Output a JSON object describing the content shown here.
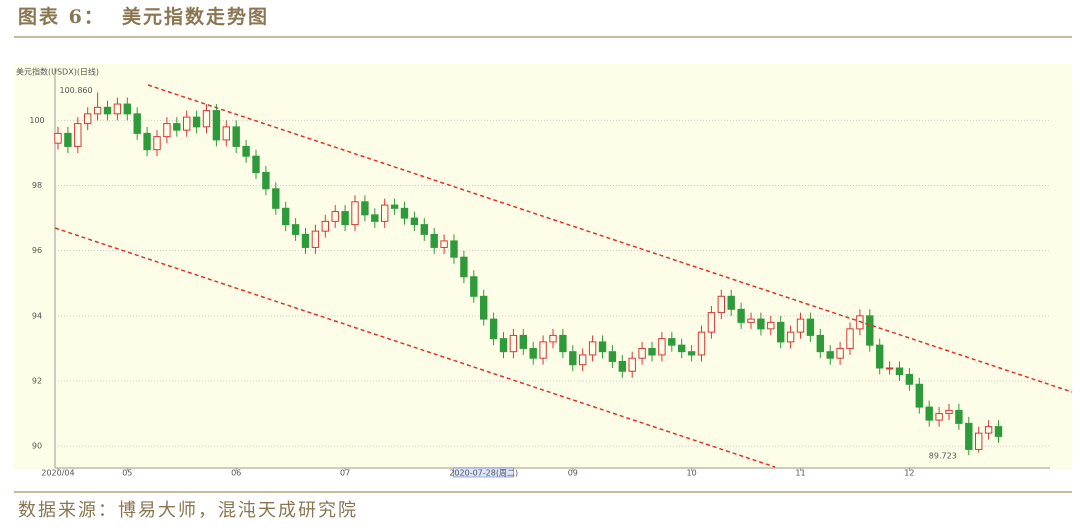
{
  "header": {
    "label": "图表 6：",
    "title": "美元指数走势图"
  },
  "footer": "数据来源：博易大师，混沌天成研究院",
  "chart_data": {
    "type": "candlestick",
    "title": "美元指数(USDX)(日线)",
    "up_color": "#d23a3a",
    "down_color": "#2e9b3a",
    "grid": true,
    "ylim": [
      89.33,
      101.3
    ],
    "yticks": [
      90,
      92,
      94,
      96,
      98,
      100
    ],
    "xticks": [
      {
        "value": 0,
        "label": "2020/04"
      },
      {
        "value": 7,
        "label": "05"
      },
      {
        "value": 18,
        "label": "06"
      },
      {
        "value": 29,
        "label": "07"
      },
      {
        "value": 52,
        "label": "09"
      },
      {
        "value": 64,
        "label": "10"
      },
      {
        "value": 75,
        "label": "11"
      },
      {
        "value": 86,
        "label": "12"
      }
    ],
    "cursor_label": {
      "value": 43,
      "label": "2020-07-28(周二)"
    },
    "annotations": [
      {
        "label": "100.860",
        "value": 100.86
      },
      {
        "label": "89.723",
        "value": 89.723
      }
    ],
    "categories": [
      null,
      null,
      null,
      null,
      null,
      null,
      null,
      null,
      null,
      null,
      null,
      null,
      null,
      null,
      null,
      null,
      null,
      null,
      null,
      null,
      null,
      null,
      null,
      null,
      null,
      null,
      null,
      null,
      null,
      null,
      null,
      null,
      null,
      null,
      null,
      null,
      null,
      null,
      null,
      null,
      null,
      null,
      null,
      null,
      null,
      null,
      null,
      null,
      null,
      null,
      null,
      null,
      null,
      null,
      null,
      null,
      null,
      null,
      null,
      null,
      null,
      null,
      null,
      null,
      null,
      null,
      null,
      null,
      null,
      null,
      null,
      null,
      null,
      null,
      null,
      null,
      null,
      null,
      null,
      null,
      null,
      null,
      null,
      null,
      null,
      null,
      null,
      null,
      null,
      null,
      null,
      null,
      null,
      null,
      null,
      null
    ],
    "open": [
      99.3,
      99.6,
      99.2,
      99.9,
      100.2,
      100.4,
      100.2,
      100.5,
      100.2,
      99.6,
      99.1,
      99.5,
      99.9,
      99.7,
      100.1,
      99.8,
      100.3,
      99.4,
      99.8,
      99.2,
      98.9,
      98.4,
      97.9,
      97.3,
      96.8,
      96.5,
      96.1,
      96.6,
      96.9,
      97.2,
      96.8,
      97.5,
      97.1,
      96.9,
      97.4,
      97.3,
      97.0,
      96.8,
      96.5,
      96.1,
      96.3,
      95.8,
      95.2,
      94.6,
      93.9,
      93.3,
      92.9,
      93.4,
      93.0,
      92.7,
      93.2,
      93.4,
      92.9,
      92.5,
      92.8,
      93.2,
      92.9,
      92.6,
      92.3,
      92.7,
      93.0,
      92.8,
      93.3,
      93.1,
      92.9,
      92.8,
      93.5,
      94.1,
      94.6,
      94.2,
      93.8,
      93.9,
      93.6,
      93.8,
      93.2,
      93.5,
      93.9,
      93.4,
      92.9,
      92.7,
      93.0,
      93.6,
      94.0,
      93.1,
      92.4,
      92.4,
      92.2,
      91.9,
      91.2,
      90.8,
      91.0,
      91.1,
      90.7,
      89.9,
      90.4,
      90.6
    ],
    "high": [
      99.8,
      99.8,
      100.1,
      100.4,
      100.86,
      100.6,
      100.7,
      100.7,
      100.4,
      99.8,
      99.7,
      100.1,
      100.1,
      100.3,
      100.3,
      100.5,
      100.5,
      100.0,
      100.0,
      99.4,
      99.1,
      98.6,
      98.1,
      97.5,
      97.0,
      96.7,
      96.8,
      97.1,
      97.4,
      97.4,
      97.7,
      97.7,
      97.3,
      97.6,
      97.6,
      97.5,
      97.2,
      97.0,
      96.7,
      96.5,
      96.5,
      96.0,
      95.4,
      94.8,
      94.1,
      93.5,
      93.6,
      93.6,
      93.2,
      93.4,
      93.6,
      93.6,
      93.1,
      93.0,
      93.4,
      93.4,
      93.1,
      92.8,
      92.9,
      93.2,
      93.2,
      93.5,
      93.5,
      93.3,
      93.1,
      93.7,
      94.3,
      94.8,
      94.8,
      94.4,
      94.1,
      94.1,
      94.0,
      94.0,
      93.7,
      94.1,
      94.1,
      93.6,
      93.1,
      93.2,
      93.8,
      94.2,
      94.2,
      93.3,
      92.6,
      92.6,
      92.4,
      92.1,
      91.4,
      91.2,
      91.3,
      91.3,
      90.9,
      90.6,
      90.8,
      90.8
    ],
    "low": [
      99.1,
      99.0,
      99.0,
      99.7,
      100.0,
      100.0,
      100.0,
      100.0,
      99.4,
      98.9,
      98.9,
      99.3,
      99.5,
      99.5,
      99.6,
      99.6,
      99.2,
      99.2,
      99.0,
      98.7,
      98.2,
      97.7,
      97.1,
      96.6,
      96.3,
      95.9,
      95.9,
      96.4,
      96.7,
      96.6,
      96.6,
      96.9,
      96.7,
      96.7,
      97.1,
      96.8,
      96.6,
      96.3,
      95.9,
      95.9,
      95.6,
      95.0,
      94.4,
      93.7,
      93.1,
      92.7,
      92.7,
      92.8,
      92.5,
      92.5,
      93.0,
      92.7,
      92.3,
      92.3,
      92.6,
      92.7,
      92.4,
      92.1,
      92.1,
      92.5,
      92.6,
      92.6,
      92.9,
      92.7,
      92.6,
      92.6,
      93.3,
      93.9,
      94.0,
      93.6,
      93.6,
      93.4,
      93.4,
      93.0,
      93.0,
      93.3,
      93.2,
      92.7,
      92.5,
      92.5,
      92.8,
      93.4,
      92.9,
      92.2,
      92.2,
      92.0,
      91.7,
      91.0,
      90.6,
      90.6,
      90.8,
      90.5,
      89.723,
      89.8,
      90.2,
      90.1
    ],
    "close": [
      99.6,
      99.2,
      99.9,
      100.2,
      100.4,
      100.2,
      100.5,
      100.2,
      99.6,
      99.1,
      99.5,
      99.9,
      99.7,
      100.1,
      99.8,
      100.3,
      99.4,
      99.8,
      99.2,
      98.9,
      98.4,
      97.9,
      97.3,
      96.8,
      96.5,
      96.1,
      96.6,
      96.9,
      97.2,
      96.8,
      97.5,
      97.1,
      96.9,
      97.4,
      97.3,
      97.0,
      96.8,
      96.5,
      96.1,
      96.3,
      95.8,
      95.2,
      94.6,
      93.9,
      93.3,
      92.9,
      93.4,
      93.0,
      92.7,
      93.2,
      93.4,
      92.9,
      92.5,
      92.8,
      93.2,
      92.9,
      92.6,
      92.3,
      92.7,
      93.0,
      92.8,
      93.3,
      93.1,
      92.9,
      92.8,
      93.5,
      94.1,
      94.6,
      94.2,
      93.8,
      93.9,
      93.6,
      93.8,
      93.2,
      93.5,
      93.9,
      93.4,
      92.9,
      92.7,
      93.0,
      93.6,
      94.0,
      93.1,
      92.4,
      92.4,
      92.2,
      91.9,
      91.2,
      90.8,
      91.0,
      91.1,
      90.7,
      89.9,
      90.4,
      90.6,
      90.3
    ]
  }
}
